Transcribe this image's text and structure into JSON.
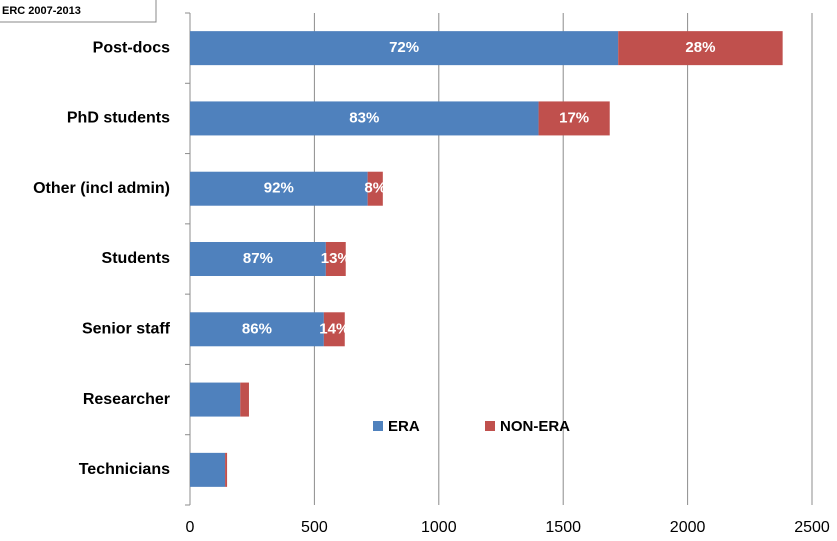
{
  "chart_data": {
    "type": "stacked_barh",
    "title": "ERC 2007-2013",
    "categories": [
      "Post-docs",
      "PhD students",
      "Other (incl admin)",
      "Students",
      "Senior staff",
      "Researcher",
      "Technicians"
    ],
    "series": [
      {
        "name": "ERA",
        "color": "#4f81bd",
        "values": [
          1721,
          1401,
          714,
          546,
          538,
          202,
          141
        ],
        "share_labels": [
          "72%",
          "83%",
          "92%",
          "87%",
          "86%",
          null,
          null
        ]
      },
      {
        "name": "NON-ERA",
        "color": "#c0504d",
        "values": [
          661,
          286,
          61,
          80,
          84,
          35,
          8
        ],
        "share_labels": [
          "28%",
          "17%",
          "8%",
          "13%",
          "14%",
          null,
          null
        ]
      }
    ],
    "xlim": [
      0,
      2500
    ],
    "xticks": [
      0,
      500,
      1000,
      1500,
      2000,
      2500
    ],
    "grid": true,
    "legend": "center"
  }
}
